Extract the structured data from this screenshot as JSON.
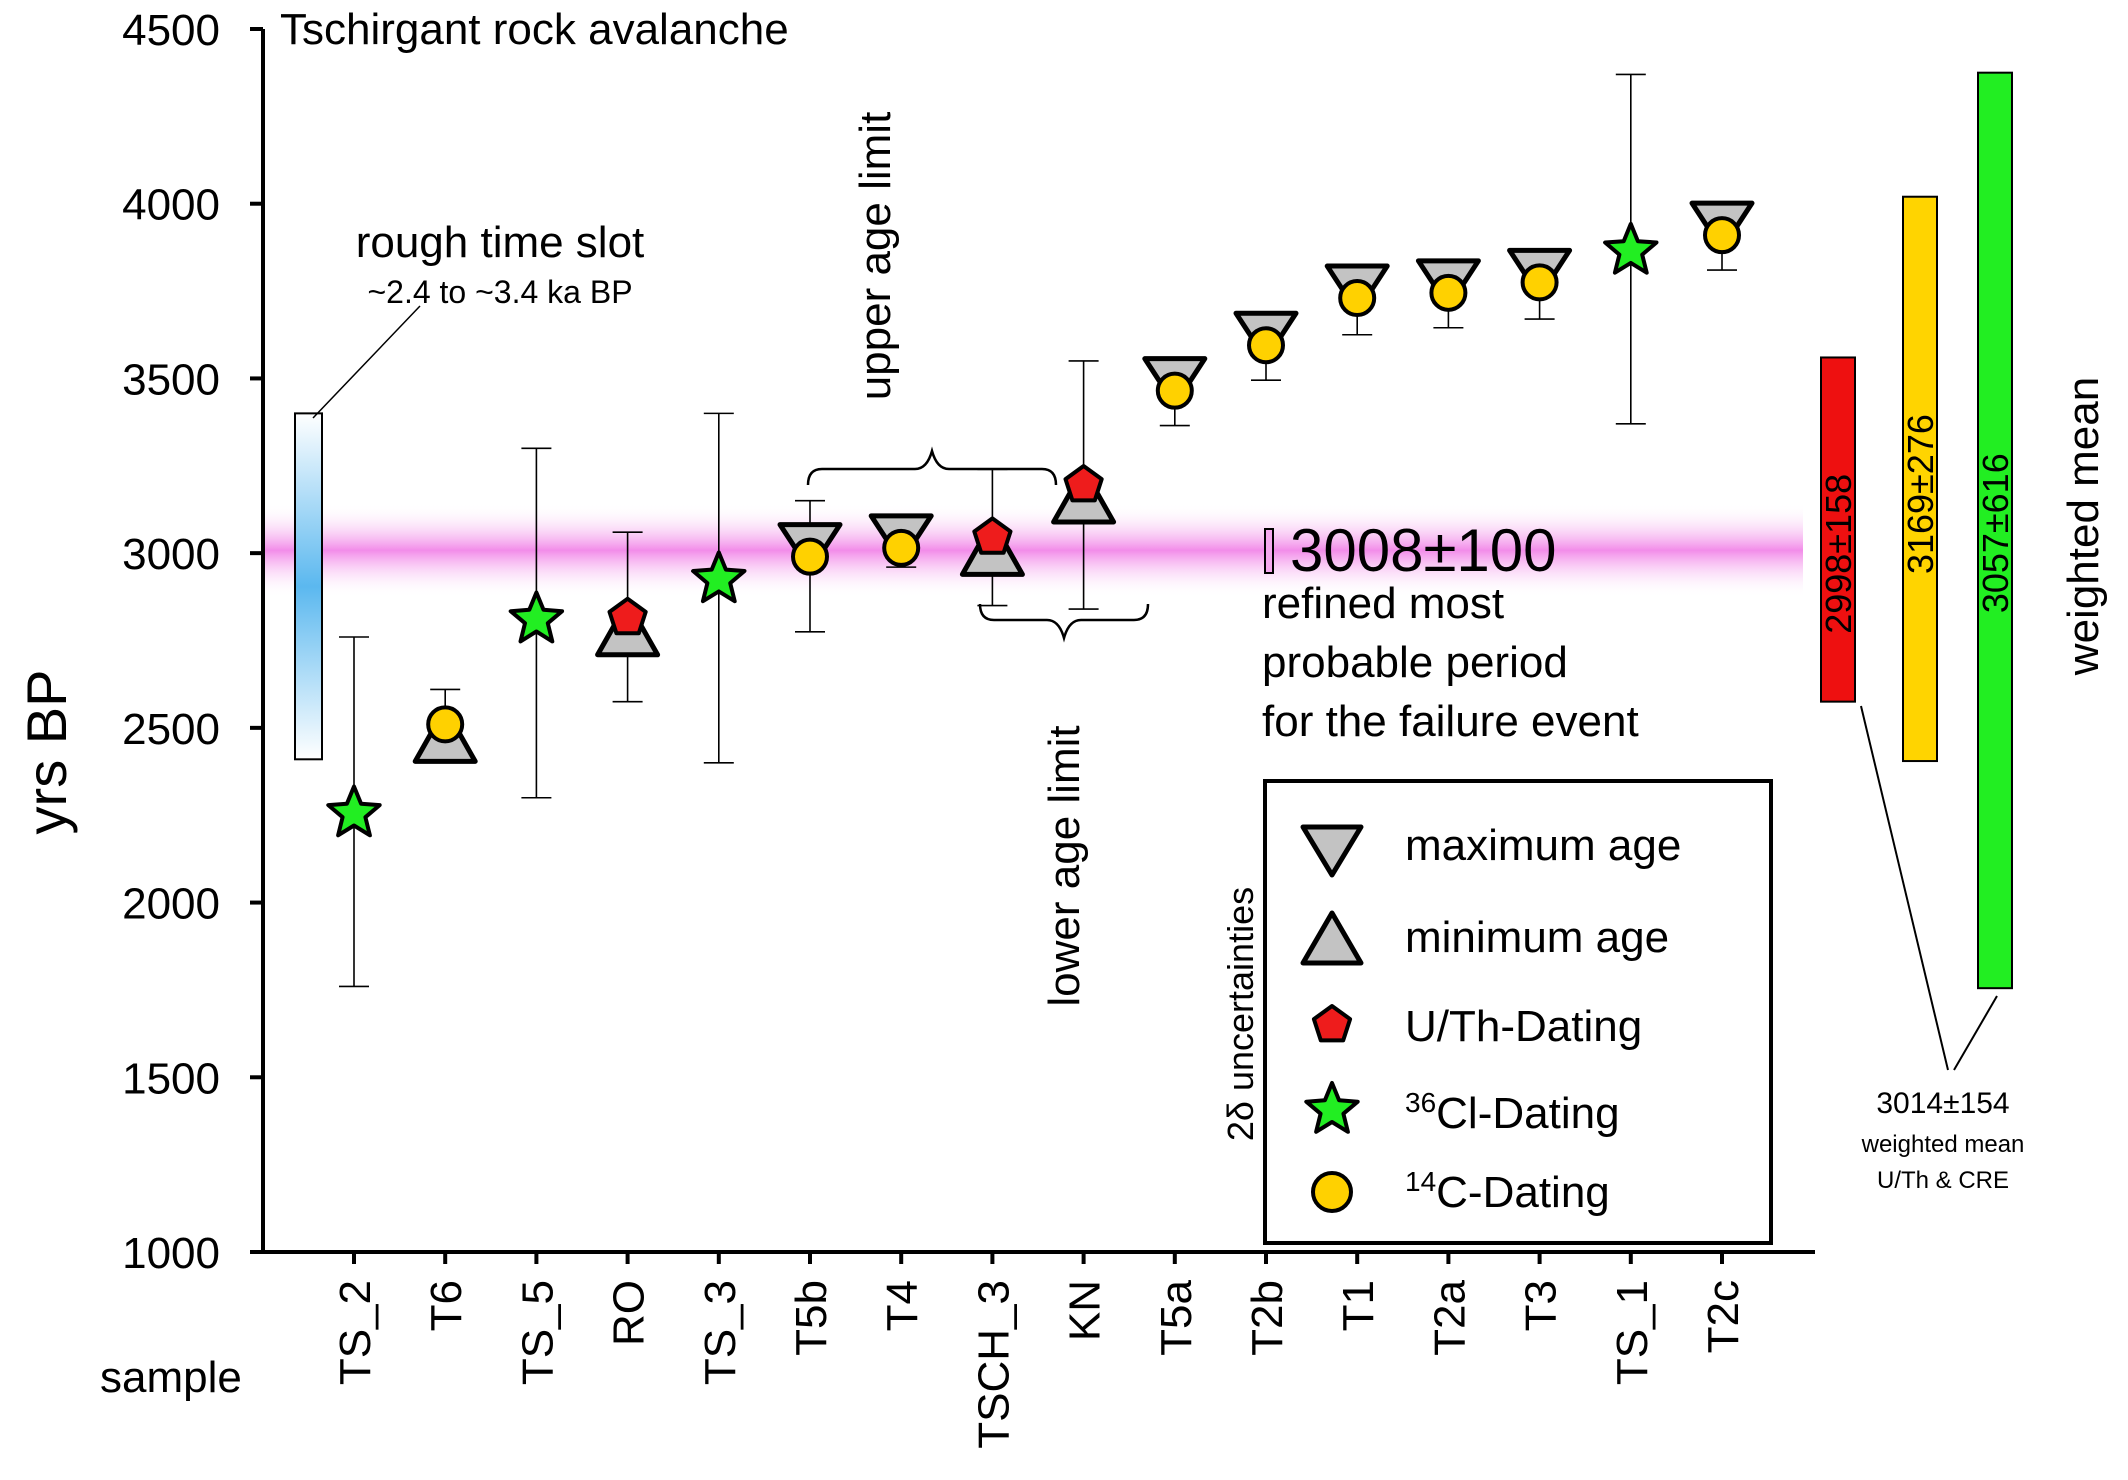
{
  "colors": {
    "uth": "#ee1c1c",
    "cl36": "#22ee22",
    "c14": "#ffd100",
    "limit_gray": "#c3c3c3",
    "band": "#f5a8ee",
    "slot_blue": "#5bb8ef",
    "wm_uth": "#ee1010",
    "wm_c14": "#ffd400",
    "wm_cre": "#22ee22"
  },
  "chart_data": {
    "type": "scatter",
    "title": "Tschirgant rock avalanche",
    "ylabel": "yrs BP",
    "xlabel": "sample",
    "ylim": [
      1000,
      4500
    ],
    "yticks": [
      "1000",
      "1500",
      "2000",
      "2500",
      "3000",
      "3500",
      "4000",
      "4500"
    ],
    "categories": [
      "TS_2",
      "T6",
      "TS_5",
      "RO",
      "TS_3",
      "T5b",
      "T4",
      "TSCH_3",
      "KN",
      "T5a",
      "T2b",
      "T1",
      "T2a",
      "T3",
      "TS_1",
      "T2c"
    ],
    "points": [
      {
        "sample": "TS_2",
        "method": "36Cl",
        "age": 2255,
        "err_low": 1760,
        "err_high": 2760
      },
      {
        "sample": "T6",
        "method": "14C",
        "age": 2510,
        "err_low": 2440,
        "err_high": 2610,
        "limit": "min"
      },
      {
        "sample": "TS_5",
        "method": "36Cl",
        "age": 2810,
        "err_low": 2300,
        "err_high": 3300
      },
      {
        "sample": "RO",
        "method": "U/Th",
        "age": 2815,
        "err_low": 2575,
        "err_high": 3060,
        "limit": "min"
      },
      {
        "sample": "TS_3",
        "method": "36Cl",
        "age": 2925,
        "err_low": 2400,
        "err_high": 3400
      },
      {
        "sample": "T5b",
        "method": "14C",
        "age": 2990,
        "err_low": 2775,
        "err_high": 3150,
        "limit": "max"
      },
      {
        "sample": "T4",
        "method": "14C",
        "age": 3015,
        "err_low": 2960,
        "err_high": 3050,
        "limit": "max"
      },
      {
        "sample": "TSCH_3",
        "method": "U/Th",
        "age": 3045,
        "err_low": 2850,
        "err_high": 3240,
        "limit": "min"
      },
      {
        "sample": "KN",
        "method": "U/Th",
        "age": 3195,
        "err_low": 2840,
        "err_high": 3550,
        "limit": "min"
      },
      {
        "sample": "T5a",
        "method": "14C",
        "age": 3465,
        "err_low": 3365,
        "err_high": 3535,
        "limit": "max"
      },
      {
        "sample": "T2b",
        "method": "14C",
        "age": 3595,
        "err_low": 3495,
        "err_high": 3680,
        "limit": "max"
      },
      {
        "sample": "T1",
        "method": "14C",
        "age": 3730,
        "err_low": 3625,
        "err_high": 3810,
        "limit": "max"
      },
      {
        "sample": "T2a",
        "method": "14C",
        "age": 3745,
        "err_low": 3645,
        "err_high": 3840,
        "limit": "max"
      },
      {
        "sample": "T3",
        "method": "14C",
        "age": 3775,
        "err_low": 3670,
        "err_high": 3850,
        "limit": "max"
      },
      {
        "sample": "TS_1",
        "method": "36Cl",
        "age": 3865,
        "err_low": 3370,
        "err_high": 4370
      },
      {
        "sample": "T2c",
        "method": "14C",
        "age": 3910,
        "err_low": 3810,
        "err_high": 4000,
        "limit": "max"
      }
    ],
    "time_slot": {
      "from": 2410,
      "to": 3400,
      "title": "rough time slot",
      "subtitle": "~2.4 to ~3.4 ka BP"
    },
    "refined_period": {
      "value": 3008,
      "uncertainty": 100,
      "label": "3008±100",
      "caption": [
        "refined most",
        "probable period",
        "for the failure event"
      ]
    },
    "upper_age_limit": "upper age limit",
    "lower_age_limit": "lower age limit",
    "uncertainty_note": "2δ uncertainties",
    "legend": {
      "position": "lower-right",
      "entries": [
        "maximum age",
        "minimum age",
        "U/Th-Dating",
        "36Cl-Dating",
        "14C-Dating"
      ],
      "cl_sup": "36",
      "cl_rest": "Cl-Dating",
      "c_sup": "14",
      "c_rest": "C-Dating"
    },
    "weighted_means": {
      "title": "weighted mean",
      "bars": [
        {
          "label": "2998±158",
          "mean": 2998,
          "err": 158,
          "bottom": 2575,
          "top": 3560
        },
        {
          "label": "3169±276",
          "mean": 3169,
          "err": 276,
          "bottom": 2405,
          "top": 4020
        },
        {
          "label": "3057±616",
          "mean": 3057,
          "err": 616,
          "bottom": 1755,
          "top": 4375
        }
      ],
      "combined": {
        "value": "3014±154",
        "line1": "weighted mean",
        "line2": "U/Th & CRE"
      }
    }
  }
}
